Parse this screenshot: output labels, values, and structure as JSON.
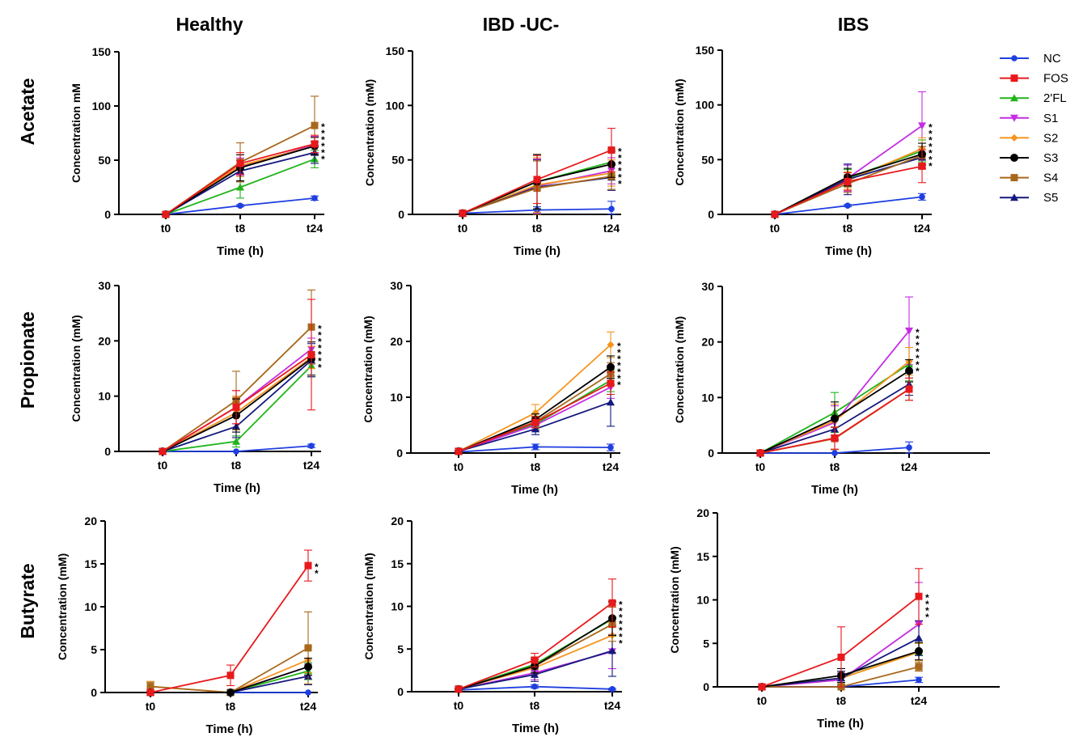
{
  "colors": {
    "NC": "#1f3fe0",
    "FOS": "#e8191c",
    "2'FL": "#20b41a",
    "S1": "#c52de3",
    "S2": "#f7941d",
    "S3": "#000000",
    "S4": "#a8681c",
    "S5": "#15197e"
  },
  "legend": {
    "placement": "right",
    "entries": [
      {
        "name": "NC",
        "marker": "circle"
      },
      {
        "name": "FOS",
        "marker": "square"
      },
      {
        "name": "2'FL",
        "marker": "triangle-up"
      },
      {
        "name": "S1",
        "marker": "triangle-down"
      },
      {
        "name": "S2",
        "marker": "diamond"
      },
      {
        "name": "S3",
        "marker": "circle-large"
      },
      {
        "name": "S4",
        "marker": "square"
      },
      {
        "name": "S5",
        "marker": "triangle-up"
      }
    ]
  },
  "column_titles": [
    "Healthy",
    "IBD -UC-",
    "IBS"
  ],
  "row_titles": [
    "Acetate",
    "Propionate",
    "Butyrate"
  ],
  "chart_data": [
    {
      "type": "line",
      "row": 0,
      "col": 0,
      "xlabel": "Time (h)",
      "ylabel": "Concentration mM",
      "categories": [
        "t0",
        "t8",
        "t24"
      ],
      "ylim": [
        0,
        150
      ],
      "yticks": [
        "0",
        "50",
        "100",
        "150"
      ],
      "annotations": [
        "*",
        "*",
        "*",
        "*",
        "*",
        "*"
      ],
      "series": [
        {
          "name": "NC",
          "values": [
            0,
            8,
            15
          ],
          "err": [
            0,
            1,
            2
          ]
        },
        {
          "name": "FOS",
          "values": [
            0,
            47,
            65
          ],
          "err": [
            0,
            10,
            8
          ]
        },
        {
          "name": "2'FL",
          "values": [
            0,
            25,
            51
          ],
          "err": [
            0,
            10,
            8
          ]
        },
        {
          "name": "S1",
          "values": [
            0,
            44,
            64
          ],
          "err": [
            0,
            8,
            8
          ]
        },
        {
          "name": "S2",
          "values": [
            0,
            45,
            63
          ],
          "err": [
            0,
            10,
            8
          ]
        },
        {
          "name": "S3",
          "values": [
            0,
            43,
            63
          ],
          "err": [
            0,
            12,
            8
          ]
        },
        {
          "name": "S4",
          "values": [
            0,
            48,
            82
          ],
          "err": [
            0,
            18,
            27
          ]
        },
        {
          "name": "S5",
          "values": [
            0,
            40,
            57
          ],
          "err": [
            0,
            10,
            10
          ]
        }
      ]
    },
    {
      "type": "line",
      "row": 0,
      "col": 1,
      "xlabel": "Time (h)",
      "ylabel": "Concentration (mM)",
      "categories": [
        "t0",
        "t8",
        "t24"
      ],
      "ylim": [
        0,
        150
      ],
      "yticks": [
        "0",
        "50",
        "100",
        "150"
      ],
      "annotations": [
        "*",
        "*",
        "*",
        "*",
        "*",
        "*"
      ],
      "series": [
        {
          "name": "NC",
          "values": [
            1,
            4,
            5
          ],
          "err": [
            0,
            3,
            7
          ]
        },
        {
          "name": "FOS",
          "values": [
            1,
            32,
            59
          ],
          "err": [
            0,
            22,
            20
          ]
        },
        {
          "name": "2'FL",
          "values": [
            1,
            30,
            48
          ],
          "err": [
            0,
            25,
            12
          ]
        },
        {
          "name": "S1",
          "values": [
            1,
            26,
            40
          ],
          "err": [
            0,
            25,
            12
          ]
        },
        {
          "name": "S2",
          "values": [
            1,
            27,
            38
          ],
          "err": [
            0,
            25,
            12
          ]
        },
        {
          "name": "S3",
          "values": [
            1,
            30,
            46
          ],
          "err": [
            0,
            25,
            12
          ]
        },
        {
          "name": "S4",
          "values": [
            1,
            24,
            35
          ],
          "err": [
            0,
            25,
            12
          ]
        },
        {
          "name": "S5",
          "values": [
            1,
            25,
            34
          ],
          "err": [
            0,
            25,
            12
          ]
        }
      ]
    },
    {
      "type": "line",
      "row": 0,
      "col": 2,
      "xlabel": "Time (h)",
      "ylabel": "Concentration (mM)",
      "categories": [
        "t0",
        "t8",
        "t24"
      ],
      "ylim": [
        0,
        150
      ],
      "yticks": [
        "0",
        "50",
        "100",
        "150"
      ],
      "annotations": [
        "*",
        "*",
        "*",
        "*",
        "*",
        "*",
        "*"
      ],
      "series": [
        {
          "name": "NC",
          "values": [
            0,
            8,
            16
          ],
          "err": [
            0,
            1,
            3
          ]
        },
        {
          "name": "FOS",
          "values": [
            0,
            30,
            44
          ],
          "err": [
            0,
            8,
            15
          ]
        },
        {
          "name": "2'FL",
          "values": [
            0,
            33,
            58
          ],
          "err": [
            0,
            8,
            10
          ]
        },
        {
          "name": "S1",
          "values": [
            0,
            33,
            81
          ],
          "err": [
            0,
            12,
            31
          ]
        },
        {
          "name": "S2",
          "values": [
            0,
            31,
            60
          ],
          "err": [
            0,
            8,
            10
          ]
        },
        {
          "name": "S3",
          "values": [
            0,
            34,
            55
          ],
          "err": [
            0,
            8,
            10
          ]
        },
        {
          "name": "S4",
          "values": [
            0,
            28,
            54
          ],
          "err": [
            0,
            8,
            8
          ]
        },
        {
          "name": "S5",
          "values": [
            0,
            32,
            52
          ],
          "err": [
            0,
            14,
            10
          ]
        }
      ]
    },
    {
      "type": "line",
      "row": 1,
      "col": 0,
      "xlabel": "Time (h)",
      "ylabel": "Concentration (mM)",
      "categories": [
        "t0",
        "t8",
        "t24"
      ],
      "ylim": [
        0,
        30
      ],
      "yticks": [
        "0",
        "10",
        "20",
        "30"
      ],
      "annotations": [
        "*",
        "*",
        "*",
        "*",
        "*",
        "*",
        "*"
      ],
      "series": [
        {
          "name": "NC",
          "values": [
            0,
            0,
            1
          ],
          "err": [
            0,
            0,
            0.3
          ]
        },
        {
          "name": "FOS",
          "values": [
            0,
            8,
            17.5
          ],
          "err": [
            0,
            3,
            10
          ]
        },
        {
          "name": "2'FL",
          "values": [
            0,
            1.8,
            15.5
          ],
          "err": [
            0,
            1,
            2
          ]
        },
        {
          "name": "S1",
          "values": [
            0,
            8,
            18.5
          ],
          "err": [
            0,
            3,
            2
          ]
        },
        {
          "name": "S2",
          "values": [
            0,
            7,
            17
          ],
          "err": [
            0,
            3,
            2
          ]
        },
        {
          "name": "S3",
          "values": [
            0,
            6.5,
            16.8
          ],
          "err": [
            0,
            3,
            3
          ]
        },
        {
          "name": "S4",
          "values": [
            0,
            9.2,
            22.5
          ],
          "err": [
            0,
            5.3,
            6.7
          ]
        },
        {
          "name": "S5",
          "values": [
            0,
            4.5,
            16.5
          ],
          "err": [
            0,
            2,
            3
          ]
        }
      ]
    },
    {
      "type": "line",
      "row": 1,
      "col": 1,
      "xlabel": "Time (h)",
      "ylabel": "Concentration (mM)",
      "categories": [
        "t0",
        "t8",
        "t24"
      ],
      "ylim": [
        0,
        30
      ],
      "yticks": [
        "0",
        "10",
        "20",
        "30"
      ],
      "annotations": [
        "*",
        "*",
        "*",
        "*",
        "*",
        "*",
        "*"
      ],
      "series": [
        {
          "name": "NC",
          "values": [
            0.2,
            1.1,
            1
          ],
          "err": [
            0,
            0.5,
            0.6
          ]
        },
        {
          "name": "FOS",
          "values": [
            0.3,
            5.5,
            12.5
          ],
          "err": [
            0,
            1,
            2
          ]
        },
        {
          "name": "2'FL",
          "values": [
            0.3,
            5.2,
            13
          ],
          "err": [
            0,
            1,
            2
          ]
        },
        {
          "name": "S1",
          "values": [
            0.3,
            5,
            11.8
          ],
          "err": [
            0,
            1,
            2
          ]
        },
        {
          "name": "S2",
          "values": [
            0.3,
            7.2,
            19.4
          ],
          "err": [
            0,
            1.5,
            2.3
          ]
        },
        {
          "name": "S3",
          "values": [
            0.3,
            6,
            15.4
          ],
          "err": [
            0,
            1,
            2
          ]
        },
        {
          "name": "S4",
          "values": [
            0.3,
            5.6,
            14.2
          ],
          "err": [
            0,
            1,
            2
          ]
        },
        {
          "name": "S5",
          "values": [
            0.3,
            4.3,
            9.1
          ],
          "err": [
            0,
            1,
            4.3
          ]
        }
      ]
    },
    {
      "type": "line",
      "row": 1,
      "col": 2,
      "xlabel": "Time (h)",
      "ylabel": "Concentration (mM)",
      "categories": [
        "t0",
        "t8",
        "t24"
      ],
      "ylim": [
        0,
        30
      ],
      "yticks": [
        "0",
        "10",
        "20",
        "30"
      ],
      "annotations": [
        "*",
        "*",
        "*",
        "*",
        "*",
        "*",
        "*"
      ],
      "series": [
        {
          "name": "NC",
          "values": [
            0,
            0,
            1
          ],
          "err": [
            0,
            0,
            1
          ]
        },
        {
          "name": "FOS",
          "values": [
            0,
            2.7,
            11.5
          ],
          "err": [
            0,
            2,
            2
          ]
        },
        {
          "name": "2'FL",
          "values": [
            0,
            7.3,
            16
          ],
          "err": [
            0,
            3.6,
            3
          ]
        },
        {
          "name": "S1",
          "values": [
            0,
            5.5,
            22
          ],
          "err": [
            0,
            3,
            6.1
          ]
        },
        {
          "name": "S2",
          "values": [
            0,
            5.8,
            16.5
          ],
          "err": [
            0,
            3,
            2.5
          ]
        },
        {
          "name": "S3",
          "values": [
            0,
            6.2,
            14.8
          ],
          "err": [
            0,
            3,
            2
          ]
        },
        {
          "name": "S4",
          "values": [
            0,
            2.6,
            11.5
          ],
          "err": [
            0,
            2,
            2
          ]
        },
        {
          "name": "S5",
          "values": [
            0,
            4.3,
            12.4
          ],
          "err": [
            0,
            2,
            2
          ]
        }
      ]
    },
    {
      "type": "line",
      "row": 2,
      "col": 0,
      "xlabel": "Time (h)",
      "ylabel": "Concentration (mM)",
      "categories": [
        "t0",
        "t8",
        "t24"
      ],
      "ylim": [
        0,
        20
      ],
      "yticks": [
        "0",
        "5",
        "10",
        "15",
        "20"
      ],
      "annotations": [
        "*",
        "*"
      ],
      "series": [
        {
          "name": "NC",
          "values": [
            0,
            0,
            0
          ],
          "err": [
            0,
            0,
            0
          ]
        },
        {
          "name": "FOS",
          "values": [
            0,
            2,
            14.8
          ],
          "err": [
            0,
            1.2,
            1.8
          ]
        },
        {
          "name": "2'FL",
          "values": [
            0,
            0,
            2.5
          ],
          "err": [
            0,
            0,
            1
          ]
        },
        {
          "name": "S1",
          "values": [
            0,
            0,
            3
          ],
          "err": [
            0,
            0,
            1
          ]
        },
        {
          "name": "S2",
          "values": [
            0.7,
            0,
            3.8
          ],
          "err": [
            0.6,
            0,
            1.5
          ]
        },
        {
          "name": "S3",
          "values": [
            0,
            0,
            3
          ],
          "err": [
            0,
            0,
            1
          ]
        },
        {
          "name": "S4",
          "values": [
            0.7,
            0,
            5.2
          ],
          "err": [
            0.5,
            0,
            4.2
          ]
        },
        {
          "name": "S5",
          "values": [
            0,
            0,
            1.9
          ],
          "err": [
            0,
            0,
            1
          ]
        }
      ]
    },
    {
      "type": "line",
      "row": 2,
      "col": 1,
      "xlabel": "Time (h)",
      "ylabel": "Concentration (mM)",
      "categories": [
        "t0",
        "t8",
        "t24"
      ],
      "ylim": [
        0,
        20
      ],
      "yticks": [
        "0",
        "5",
        "10",
        "15",
        "20"
      ],
      "annotations": [
        "*",
        "*",
        "*",
        "*",
        "*",
        "*",
        "*"
      ],
      "series": [
        {
          "name": "NC",
          "values": [
            0.2,
            0.6,
            0.3
          ],
          "err": [
            0,
            0.2,
            0.1
          ]
        },
        {
          "name": "FOS",
          "values": [
            0.3,
            3.7,
            10.4
          ],
          "err": [
            0,
            0.8,
            2.8
          ]
        },
        {
          "name": "2'FL",
          "values": [
            0.3,
            3.2,
            8.5
          ],
          "err": [
            0,
            0.8,
            2
          ]
        },
        {
          "name": "S1",
          "values": [
            0.3,
            2.2,
            4.7
          ],
          "err": [
            0,
            0.8,
            2
          ]
        },
        {
          "name": "S2",
          "values": [
            0.3,
            2.8,
            6.6
          ],
          "err": [
            0,
            0.8,
            2
          ]
        },
        {
          "name": "S3",
          "values": [
            0.3,
            3,
            8.6
          ],
          "err": [
            0,
            0.8,
            2
          ]
        },
        {
          "name": "S4",
          "values": [
            0.3,
            3,
            7.9
          ],
          "err": [
            0,
            0.8,
            2
          ]
        },
        {
          "name": "S5",
          "values": [
            0.3,
            2,
            4.8
          ],
          "err": [
            0,
            0.8,
            3
          ]
        }
      ]
    },
    {
      "type": "line",
      "row": 2,
      "col": 2,
      "xlabel": "Time (h)",
      "ylabel": "Concentration (mM)",
      "categories": [
        "t0",
        "t8",
        "t24"
      ],
      "ylim": [
        0,
        20
      ],
      "yticks": [
        "0",
        "5",
        "10",
        "15",
        "20"
      ],
      "annotations": [
        "*",
        "*",
        "*",
        "*"
      ],
      "series": [
        {
          "name": "NC",
          "values": [
            0,
            0,
            0.8
          ],
          "err": [
            0,
            0,
            0.3
          ]
        },
        {
          "name": "FOS",
          "values": [
            0,
            3.4,
            10.4
          ],
          "err": [
            0,
            3.5,
            3.2
          ]
        },
        {
          "name": "2'FL",
          "values": [
            0,
            1,
            4
          ],
          "err": [
            0,
            0.8,
            1
          ]
        },
        {
          "name": "S1",
          "values": [
            0,
            0.8,
            7.2
          ],
          "err": [
            0,
            0.8,
            4.8
          ]
        },
        {
          "name": "S2",
          "values": [
            0,
            1,
            4
          ],
          "err": [
            0,
            0.8,
            1
          ]
        },
        {
          "name": "S3",
          "values": [
            0,
            1.3,
            4.1
          ],
          "err": [
            0,
            0.8,
            1
          ]
        },
        {
          "name": "S4",
          "values": [
            0,
            0,
            2.3
          ],
          "err": [
            0,
            0,
            0.5
          ]
        },
        {
          "name": "S5",
          "values": [
            0,
            1,
            5.6
          ],
          "err": [
            0,
            0.8,
            2
          ]
        }
      ]
    }
  ]
}
